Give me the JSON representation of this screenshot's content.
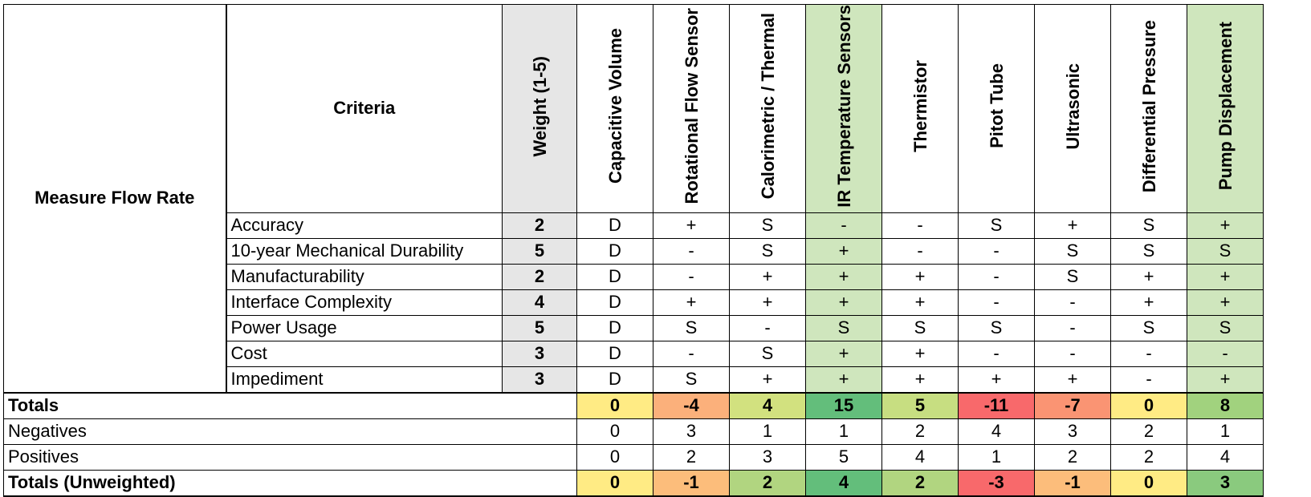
{
  "group_label": "Measure Flow Rate",
  "criteria_header": "Criteria",
  "weight_header": "Weight (1-5)",
  "options": [
    {
      "name": "Capacitive Volume",
      "highlight": false
    },
    {
      "name": "Rotational Flow Sensor",
      "highlight": false
    },
    {
      "name": "Calorimetric / Thermal",
      "highlight": false
    },
    {
      "name": "IR Temperature Sensors",
      "highlight": true
    },
    {
      "name": "Thermistor",
      "highlight": false
    },
    {
      "name": "Pitot Tube",
      "highlight": false
    },
    {
      "name": "Ultrasonic",
      "highlight": false
    },
    {
      "name": "Differential Pressure",
      "highlight": false
    },
    {
      "name": "Pump Displacement",
      "highlight": true
    }
  ],
  "highlight_color": "#cfe6bd",
  "weight_bg": "#e6e6e6",
  "criteria": [
    {
      "name": "Accuracy",
      "weight": "2",
      "ratings": [
        "D",
        "+",
        "S",
        "-",
        "-",
        "S",
        "+",
        "S",
        "+"
      ]
    },
    {
      "name": "10-year Mechanical Durability",
      "weight": "5",
      "ratings": [
        "D",
        "-",
        "S",
        "+",
        "-",
        "-",
        "S",
        "S",
        "S"
      ]
    },
    {
      "name": "Manufacturability",
      "weight": "2",
      "ratings": [
        "D",
        "-",
        "+",
        "+",
        "+",
        "-",
        "S",
        "+",
        "+"
      ]
    },
    {
      "name": "Interface Complexity",
      "weight": "4",
      "ratings": [
        "D",
        "+",
        "+",
        "+",
        "+",
        "-",
        "-",
        "+",
        "+"
      ]
    },
    {
      "name": "Power Usage",
      "weight": "5",
      "ratings": [
        "D",
        "S",
        "-",
        "S",
        "S",
        "S",
        "-",
        "S",
        "S"
      ]
    },
    {
      "name": "Cost",
      "weight": "3",
      "ratings": [
        "D",
        "-",
        "S",
        "+",
        "+",
        "-",
        "-",
        "-",
        "-"
      ]
    },
    {
      "name": "Impediment",
      "weight": "3",
      "ratings": [
        "D",
        "S",
        "+",
        "+",
        "+",
        "+",
        "+",
        "-",
        "+"
      ]
    }
  ],
  "totals_label": "Totals",
  "totals": [
    {
      "value": "0",
      "color": "#ffeb84"
    },
    {
      "value": "-4",
      "color": "#fbb07b"
    },
    {
      "value": "4",
      "color": "#d2e17f"
    },
    {
      "value": "15",
      "color": "#63be7b"
    },
    {
      "value": "5",
      "color": "#c7de81"
    },
    {
      "value": "-11",
      "color": "#f8696b"
    },
    {
      "value": "-7",
      "color": "#fa9473"
    },
    {
      "value": "0",
      "color": "#ffeb84"
    },
    {
      "value": "8",
      "color": "#a1d27e"
    }
  ],
  "negatives_label": "Negatives",
  "negatives": [
    "0",
    "3",
    "1",
    "1",
    "2",
    "4",
    "3",
    "2",
    "1"
  ],
  "positives_label": "Positives",
  "positives": [
    "0",
    "2",
    "3",
    "5",
    "4",
    "1",
    "2",
    "2",
    "4"
  ],
  "unweighted_label": "Totals (Unweighted)",
  "unweighted": [
    {
      "value": "0",
      "color": "#ffeb84"
    },
    {
      "value": "-1",
      "color": "#fcbd7b"
    },
    {
      "value": "2",
      "color": "#b1d580"
    },
    {
      "value": "4",
      "color": "#63be7b"
    },
    {
      "value": "2",
      "color": "#b1d580"
    },
    {
      "value": "-3",
      "color": "#f8696b"
    },
    {
      "value": "-1",
      "color": "#fcbd7b"
    },
    {
      "value": "0",
      "color": "#ffeb84"
    },
    {
      "value": "3",
      "color": "#8aca7e"
    }
  ]
}
